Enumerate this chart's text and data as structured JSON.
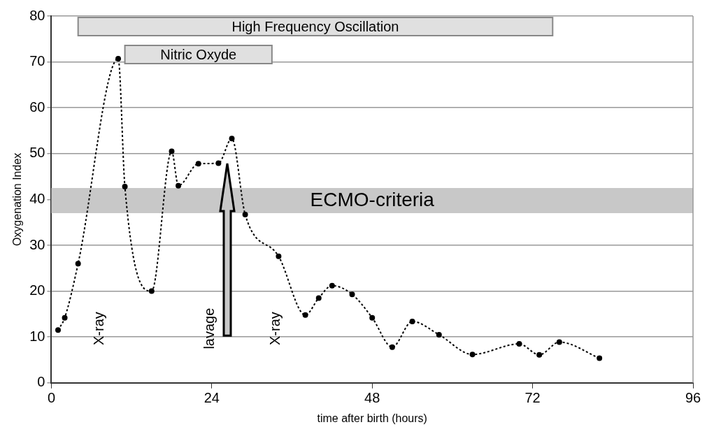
{
  "chart_data": {
    "type": "line",
    "xlabel": "time after birth (hours)",
    "ylabel": "Oxygenation Index",
    "x": [
      1,
      2,
      4,
      10,
      11,
      15,
      18,
      19,
      22,
      25,
      27,
      29,
      34,
      38,
      40,
      42,
      45,
      48,
      51,
      54,
      58,
      63,
      70,
      73,
      76,
      82
    ],
    "series": [
      {
        "color": "#000000",
        "values": [
          11.5,
          14.2,
          26,
          70.7,
          42.8,
          20,
          50.5,
          43,
          47.8,
          47.9,
          53.3,
          36.7,
          27.6,
          14.8,
          18.5,
          21.2,
          19.3,
          14.2,
          7.8,
          13.4,
          10.5,
          6.2,
          8.5,
          6.1,
          8.9,
          5.4
        ]
      }
    ],
    "xlim": [
      0,
      96
    ],
    "xticks": [
      0,
      24,
      48,
      72,
      96
    ],
    "ylim": [
      0,
      80
    ],
    "yticks": [
      0,
      10,
      20,
      30,
      40,
      50,
      60,
      70,
      80
    ],
    "grid": "y",
    "marker": "circle",
    "line_style": "dotted",
    "bands": [
      {
        "axis": "y",
        "from": 37,
        "to": 42.5,
        "label": "ECMO-criteria",
        "color": "#c8c8c8"
      },
      {
        "axis": "x",
        "from": 4,
        "to": 75,
        "label": "High Frequency Oscillation",
        "color": "#e0e0e0"
      },
      {
        "axis": "x",
        "from": 11,
        "to": 33,
        "label": "Nitric Oxyde",
        "color": "#e0e0e0"
      }
    ],
    "annotations": [
      "X-ray",
      "lavage",
      "X-ray"
    ]
  }
}
